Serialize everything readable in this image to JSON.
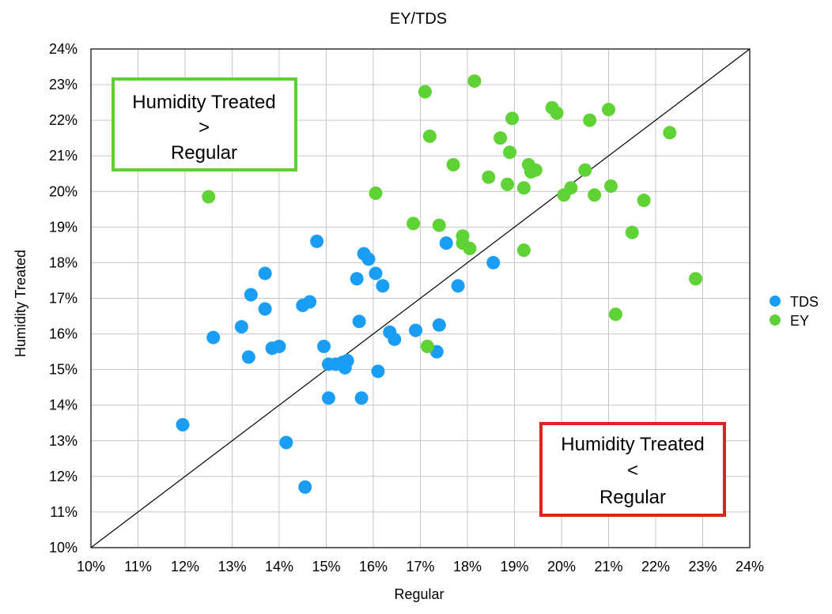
{
  "chart_data": {
    "type": "scatter",
    "title": "EY/TDS",
    "xlabel": "Regular",
    "ylabel": "Humidity Treated",
    "xlim": [
      10,
      24
    ],
    "ylim": [
      10,
      24
    ],
    "x_ticks": [
      "10%",
      "11%",
      "12%",
      "13%",
      "14%",
      "15%",
      "16%",
      "17%",
      "18%",
      "19%",
      "20%",
      "21%",
      "22%",
      "23%",
      "24%"
    ],
    "y_ticks": [
      "10%",
      "11%",
      "12%",
      "13%",
      "14%",
      "15%",
      "16%",
      "17%",
      "18%",
      "19%",
      "20%",
      "21%",
      "22%",
      "23%",
      "24%"
    ],
    "grid": true,
    "legend": "right",
    "reference_line": "y = x",
    "series": [
      {
        "name": "TDS",
        "color": "#1a9ef5",
        "points": [
          [
            11.95,
            13.45
          ],
          [
            12.6,
            15.9
          ],
          [
            13.2,
            16.2
          ],
          [
            13.35,
            15.35
          ],
          [
            13.4,
            17.1
          ],
          [
            13.7,
            17.7
          ],
          [
            13.7,
            16.7
          ],
          [
            13.85,
            15.6
          ],
          [
            14.0,
            15.65
          ],
          [
            14.15,
            12.95
          ],
          [
            14.5,
            16.8
          ],
          [
            14.55,
            11.7
          ],
          [
            14.65,
            16.9
          ],
          [
            14.8,
            18.6
          ],
          [
            14.95,
            15.65
          ],
          [
            15.05,
            15.15
          ],
          [
            15.05,
            14.2
          ],
          [
            15.2,
            15.15
          ],
          [
            15.35,
            15.2
          ],
          [
            15.4,
            15.05
          ],
          [
            15.45,
            15.25
          ],
          [
            15.65,
            17.55
          ],
          [
            15.7,
            16.35
          ],
          [
            15.75,
            14.2
          ],
          [
            15.8,
            18.25
          ],
          [
            15.9,
            18.1
          ],
          [
            16.05,
            17.7
          ],
          [
            16.1,
            14.95
          ],
          [
            16.2,
            17.35
          ],
          [
            16.35,
            16.05
          ],
          [
            16.45,
            15.85
          ],
          [
            16.9,
            16.1
          ],
          [
            17.35,
            15.5
          ],
          [
            17.4,
            16.25
          ],
          [
            17.55,
            18.55
          ],
          [
            17.8,
            17.35
          ],
          [
            18.55,
            18.0
          ]
        ]
      },
      {
        "name": "EY",
        "color": "#5fd236",
        "points": [
          [
            12.5,
            19.85
          ],
          [
            16.05,
            19.95
          ],
          [
            16.85,
            19.1
          ],
          [
            17.1,
            22.8
          ],
          [
            17.15,
            15.65
          ],
          [
            17.2,
            21.55
          ],
          [
            17.4,
            19.05
          ],
          [
            17.7,
            20.75
          ],
          [
            17.9,
            18.55
          ],
          [
            17.9,
            18.75
          ],
          [
            18.05,
            18.4
          ],
          [
            18.15,
            23.1
          ],
          [
            18.45,
            20.4
          ],
          [
            18.7,
            21.5
          ],
          [
            18.85,
            20.2
          ],
          [
            18.9,
            21.1
          ],
          [
            18.95,
            22.05
          ],
          [
            19.2,
            18.35
          ],
          [
            19.2,
            20.1
          ],
          [
            19.3,
            20.75
          ],
          [
            19.35,
            20.55
          ],
          [
            19.45,
            20.6
          ],
          [
            19.8,
            22.35
          ],
          [
            19.9,
            22.2
          ],
          [
            20.05,
            19.9
          ],
          [
            20.2,
            20.1
          ],
          [
            20.5,
            20.6
          ],
          [
            20.6,
            22.0
          ],
          [
            20.7,
            19.9
          ],
          [
            21.0,
            22.3
          ],
          [
            21.05,
            20.15
          ],
          [
            21.15,
            16.55
          ],
          [
            21.5,
            18.85
          ],
          [
            21.75,
            19.75
          ],
          [
            22.3,
            21.65
          ],
          [
            22.85,
            17.55
          ]
        ]
      }
    ],
    "annotations": [
      {
        "id": "above",
        "lines": [
          "Humidity Treated",
          ">",
          "Regular"
        ],
        "color": "#5ed037"
      },
      {
        "id": "below",
        "lines": [
          "Humidity Treated",
          "<",
          "Regular"
        ],
        "color": "#d9261c"
      }
    ]
  }
}
